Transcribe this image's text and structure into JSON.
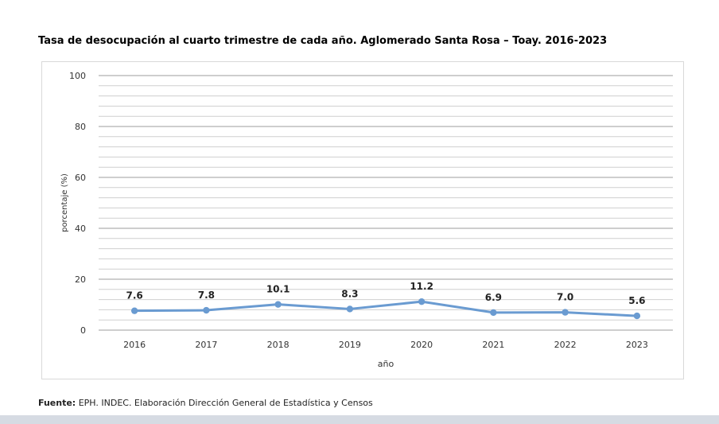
{
  "chart_data": {
    "type": "line",
    "title": "Tasa de desocupación al cuarto trimestre de cada año. Aglomerado Santa Rosa – Toay. 2016-2023",
    "xlabel": "año",
    "ylabel": "porcentaje (%)",
    "categories": [
      "2016",
      "2017",
      "2018",
      "2019",
      "2020",
      "2021",
      "2022",
      "2023"
    ],
    "series": [
      {
        "values": [
          7.6,
          7.8,
          10.1,
          8.3,
          11.2,
          6.9,
          7.0,
          5.6
        ]
      }
    ],
    "data_labels": [
      "7.6",
      "7.8",
      "10.1",
      "8.3",
      "11.2",
      "6.9",
      "7.0",
      "5.6"
    ],
    "ylim": [
      0,
      100
    ],
    "yticks": [
      "0",
      "20",
      "40",
      "60",
      "80",
      "100"
    ],
    "grid": true,
    "line_color": "#6a9bd1"
  },
  "source": {
    "label": "Fuente:",
    "text": " EPH. INDEC. Elaboración Dirección General de Estadística y Censos"
  }
}
